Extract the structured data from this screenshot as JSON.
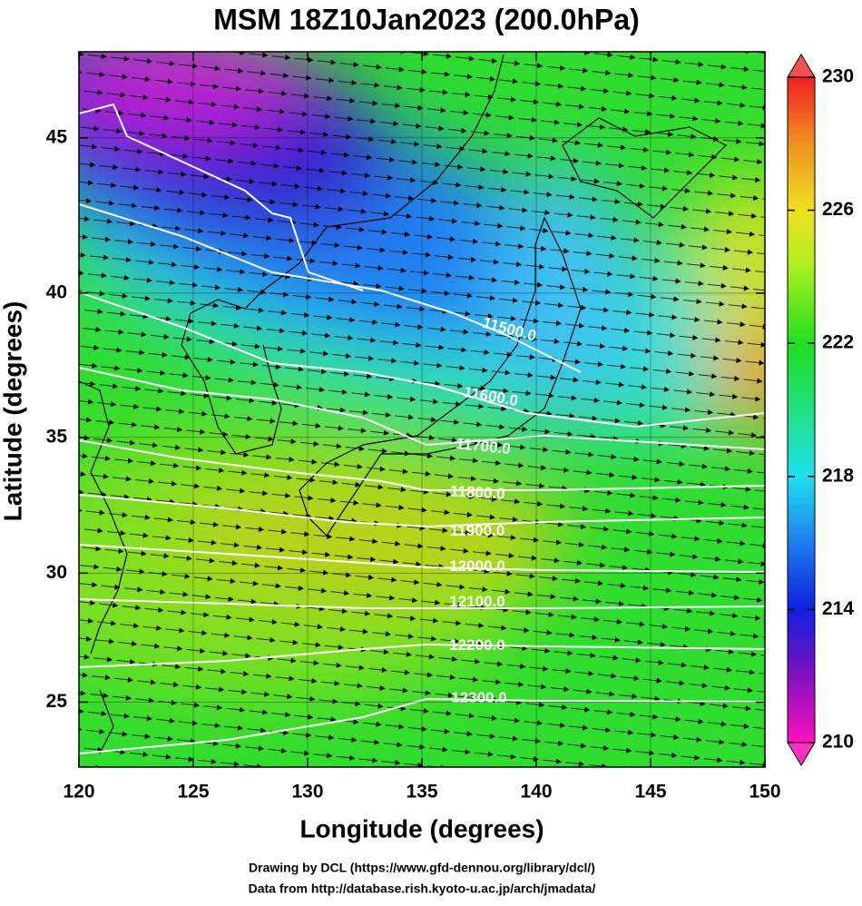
{
  "title": "MSM 18Z10Jan2023 (200.0hPa)",
  "x_axis": {
    "label": "Longitude (degrees)",
    "lim": [
      120,
      150
    ],
    "ticks": [
      120,
      125,
      130,
      135,
      140,
      145,
      150
    ]
  },
  "y_axis": {
    "label": "Latitude  (degrees)",
    "lim": [
      22.4,
      47.6
    ],
    "ticks": [
      25,
      30,
      35,
      40,
      45
    ],
    "projection": "mercator"
  },
  "colorbar": {
    "lim": [
      210,
      230
    ],
    "ticks": [
      210,
      214,
      218,
      222,
      226,
      230
    ]
  },
  "contour_labels": [
    "11500.0",
    "11600.0",
    "11700.0",
    "11800.0",
    "11900.0",
    "12000.0",
    "12100.0",
    "12200.0",
    "12300.0"
  ],
  "footer": [
    "Drawing by DCL (https://www.gfd-dennou.org/library/dcl/)",
    "Data from http://database.rish.kyoto-u.ac.jp/arch/jmadata/"
  ]
}
